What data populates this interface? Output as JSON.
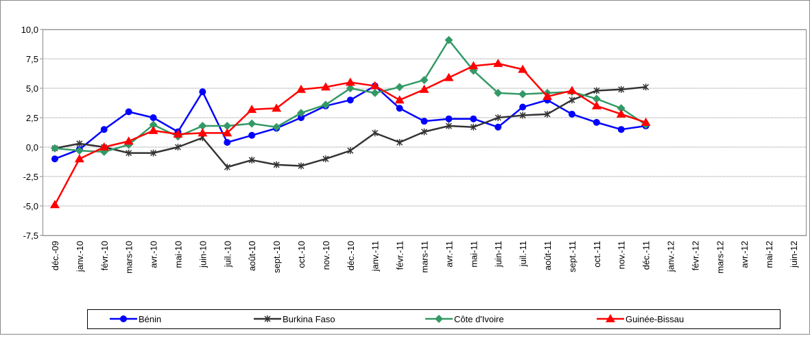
{
  "chart_data": {
    "type": "line",
    "categories": [
      "déc.-09",
      "janv.-10",
      "févr.-10",
      "mars-10",
      "avr.-10",
      "mai-10",
      "juin-10",
      "juil.-10",
      "août-10",
      "sept.-10",
      "oct.-10",
      "nov.-10",
      "déc.-10",
      "janv.-11",
      "févr.-11",
      "mars-11",
      "avr.-11",
      "mai-11",
      "juin-11",
      "juil.-11",
      "août-11",
      "sept.-11",
      "oct.-11",
      "nov.-11",
      "déc.-11",
      "janv.-12",
      "févr.-12",
      "mars-12",
      "avr.-12",
      "mai-12",
      "juin-12"
    ],
    "series": [
      {
        "name": "Bénin",
        "color": "#0000ff",
        "marker": "circle",
        "values": [
          -1.0,
          -0.2,
          1.5,
          3.0,
          2.5,
          1.3,
          4.7,
          0.4,
          1.0,
          1.6,
          2.5,
          3.5,
          4.0,
          5.2,
          3.3,
          2.2,
          2.4,
          2.4,
          1.7,
          3.4,
          4.0,
          2.8,
          2.1,
          1.5,
          1.8,
          null,
          null,
          null,
          null,
          null,
          null
        ]
      },
      {
        "name": "Burkina Faso",
        "color": "#333333",
        "marker": "star",
        "values": [
          -0.1,
          0.3,
          0.0,
          -0.5,
          -0.5,
          0.0,
          0.8,
          -1.7,
          -1.1,
          -1.5,
          -1.6,
          -1.0,
          -0.3,
          1.2,
          0.4,
          1.3,
          1.8,
          1.7,
          2.5,
          2.7,
          2.8,
          4.0,
          4.8,
          4.9,
          5.1,
          null,
          null,
          null,
          null,
          null,
          null
        ]
      },
      {
        "name": "Côte d'Ivoire",
        "color": "#339966",
        "marker": "diamond",
        "values": [
          -0.1,
          -0.3,
          -0.4,
          0.2,
          1.9,
          0.9,
          1.8,
          1.8,
          2.0,
          1.7,
          2.9,
          3.6,
          5.0,
          4.6,
          5.1,
          5.7,
          9.1,
          6.5,
          4.6,
          4.5,
          4.6,
          4.7,
          4.1,
          3.3,
          1.9,
          null,
          null,
          null,
          null,
          null,
          null
        ]
      },
      {
        "name": "Guinée-Bissau",
        "color": "#ff0000",
        "marker": "triangle",
        "values": [
          -4.9,
          -1.0,
          0.0,
          0.5,
          1.4,
          1.1,
          1.2,
          1.2,
          3.2,
          3.3,
          4.9,
          5.1,
          5.5,
          5.2,
          4.0,
          4.9,
          5.9,
          6.9,
          7.1,
          6.6,
          4.3,
          4.8,
          3.5,
          2.8,
          2.1,
          null,
          null,
          null,
          null,
          null,
          null
        ]
      }
    ],
    "ylim": [
      -7.5,
      10.0
    ],
    "yticks": [
      {
        "value": -7.5,
        "label": "-7,5"
      },
      {
        "value": -5.0,
        "label": "-5,0"
      },
      {
        "value": -2.5,
        "label": "-2,5"
      },
      {
        "value": 0.0,
        "label": "0,0"
      },
      {
        "value": 2.5,
        "label": "2,5"
      },
      {
        "value": 5.0,
        "label": "5,0"
      },
      {
        "value": 7.5,
        "label": "7,5"
      },
      {
        "value": 10.0,
        "label": "10,0"
      }
    ],
    "grid": true,
    "legend": "bottom"
  }
}
